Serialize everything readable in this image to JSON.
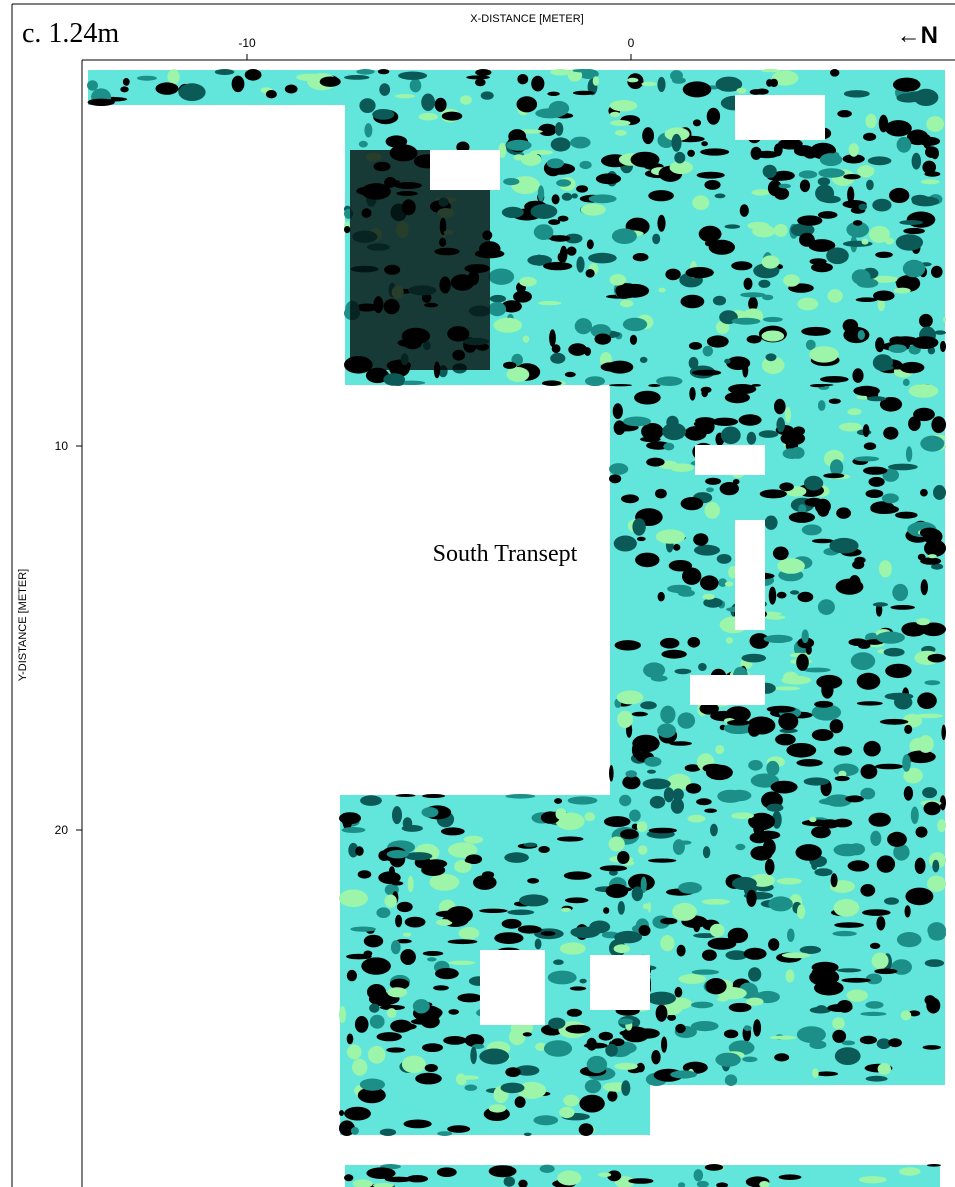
{
  "slice_label": "c. 1.24m",
  "north_arrow": "←N",
  "annotation": "South Transept",
  "x_axis": {
    "title": "X-DISTANCE [METER]",
    "ticks": [
      -10,
      0
    ]
  },
  "y_axis": {
    "title": "Y-DISTANCE [METER]",
    "ticks": [
      10,
      20
    ]
  }
}
